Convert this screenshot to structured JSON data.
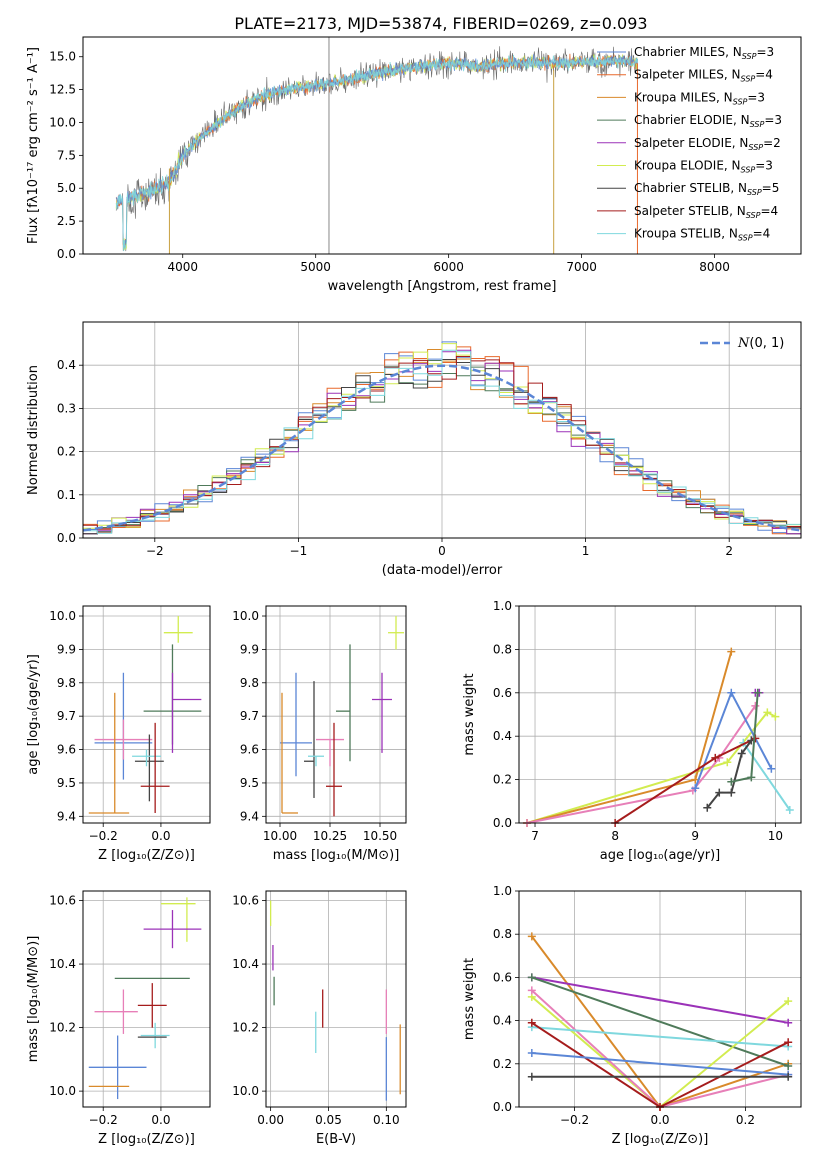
{
  "title": "PLATE=2173, MJD=53874, FIBERID=0269, z=0.093",
  "colors": {
    "Chabrier MILES": "#5b86d6",
    "Salpeter MILES": "#e8692c",
    "Kroupa MILES": "#d98a2b",
    "Chabrier ELODIE": "#4f7a5a",
    "Salpeter ELODIE": "#9b32b8",
    "Kroupa ELODIE": "#d2ec50",
    "Chabrier STELIB": "#444444",
    "Salpeter STELIB": "#a51c1c",
    "Kroupa STELIB": "#7fd8de",
    "Pink": "#e77fb8",
    "Normal": "#5b86d6"
  },
  "chart_data": [
    {
      "id": "spectrum",
      "type": "line",
      "xlabel": "wavelength [Angstrom, rest frame]",
      "ylabel": "Flux [fλ10⁻¹⁷ erg cm⁻² s⁻¹ A⁻¹]",
      "xlim": [
        3250,
        8650
      ],
      "ylim": [
        0,
        16.5
      ],
      "xticks": [
        4000,
        5000,
        6000,
        7000,
        8000
      ],
      "yticks": [
        0.0,
        2.5,
        5.0,
        7.5,
        10.0,
        12.5,
        15.0
      ],
      "legend": [
        {
          "label": "Chabrier MILES, N_SSP=3",
          "text": "Chabrier MILES, N",
          "sub": "SSP",
          "tail": "=3",
          "color": "Chabrier MILES"
        },
        {
          "label": "Salpeter MILES, N_SSP=4",
          "text": "Salpeter MILES, N",
          "sub": "SSP",
          "tail": "=4",
          "color": "Salpeter MILES"
        },
        {
          "label": "Kroupa MILES, N_SSP=3",
          "text": "Kroupa MILES, N",
          "sub": "SSP",
          "tail": "=3",
          "color": "Kroupa MILES"
        },
        {
          "label": "Chabrier ELODIE, N_SSP=3",
          "text": "Chabrier ELODIE, N",
          "sub": "SSP",
          "tail": "=3",
          "color": "Chabrier ELODIE"
        },
        {
          "label": "Salpeter ELODIE, N_SSP=2",
          "text": "Salpeter ELODIE, N",
          "sub": "SSP",
          "tail": "=2",
          "color": "Salpeter ELODIE"
        },
        {
          "label": "Kroupa ELODIE, N_SSP=3",
          "text": "Kroupa ELODIE, N",
          "sub": "SSP",
          "tail": "=3",
          "color": "Kroupa ELODIE"
        },
        {
          "label": "Chabrier STELIB, N_SSP=5",
          "text": "Chabrier STELIB, N",
          "sub": "SSP",
          "tail": "=5",
          "color": "Chabrier STELIB"
        },
        {
          "label": "Salpeter STELIB, N_SSP=4",
          "text": "Salpeter STELIB, N",
          "sub": "SSP",
          "tail": "=4",
          "color": "Salpeter STELIB"
        },
        {
          "label": "Kroupa STELIB, N_SSP=4",
          "text": "Kroupa STELIB, N",
          "sub": "SSP",
          "tail": "=4",
          "color": "Kroupa STELIB"
        }
      ],
      "continuum_x": [
        3500,
        3700,
        3900,
        4000,
        4200,
        4400,
        4600,
        4800,
        5000,
        5200,
        5400,
        5600,
        5800,
        6000,
        6200,
        6400,
        6600,
        6800,
        7000,
        7200,
        7400
      ],
      "continuum_y": [
        4.0,
        4.5,
        5.5,
        7.5,
        9.5,
        11.0,
        12.0,
        12.6,
        12.8,
        13.2,
        13.6,
        14.0,
        14.3,
        14.5,
        14.3,
        14.5,
        14.6,
        14.5,
        14.6,
        14.7,
        14.6
      ],
      "spikes": [
        {
          "x": 5100,
          "y1": 0,
          "y2": 16.5
        },
        {
          "x": 3900,
          "y1": 0,
          "y2": 6.5
        },
        {
          "x": 6790,
          "y1": 0,
          "y2": 14.0
        },
        {
          "x": 7420,
          "y1": 0,
          "y2": 14.5
        }
      ]
    },
    {
      "id": "residuals",
      "type": "histogram",
      "xlabel": "(data-model)/error",
      "ylabel": "Normed distribution",
      "xlim": [
        -2.5,
        2.5
      ],
      "ylim": [
        0,
        0.5
      ],
      "xticks": [
        -2,
        -1,
        0,
        1,
        2
      ],
      "xticklabels": [
        "−2",
        "−1",
        "0",
        "1",
        "2"
      ],
      "yticks": [
        0.0,
        0.1,
        0.2,
        0.3,
        0.4
      ],
      "bin_width": 0.1,
      "legend": {
        "label": "N(0,1)",
        "text": "(0, 1)"
      },
      "normal_curve": {
        "mean": 0,
        "sigma": 1
      }
    },
    {
      "id": "age_vs_Z",
      "type": "errorbar",
      "xlabel": "Z [log₁₀(Z/Z⊙)]",
      "ylabel": "age  [log₁₀(age/yr)]",
      "xlim": [
        -0.27,
        0.17
      ],
      "ylim": [
        9.38,
        10.03
      ],
      "xticks": [
        -0.2,
        0.0
      ],
      "xticklabels": [
        "−0.2",
        "0.0"
      ],
      "yticks": [
        9.4,
        9.5,
        9.6,
        9.7,
        9.8,
        9.9,
        10.0
      ],
      "points": [
        {
          "color": "Kroupa ELODIE",
          "x": 0.06,
          "xerr": [
            0.05,
            0.05
          ],
          "y": 9.95,
          "yerr": [
            0.03,
            0.05
          ]
        },
        {
          "color": "Chabrier ELODIE",
          "x": 0.04,
          "xerr": [
            0.1,
            0.1
          ],
          "y": 9.715,
          "yerr": [
            0.1,
            0.2
          ]
        },
        {
          "color": "Salpeter ELODIE",
          "x": 0.04,
          "xerr": [
            0.0,
            0.1
          ],
          "y": 9.75,
          "yerr": [
            0.16,
            0.08
          ]
        },
        {
          "color": "Chabrier MILES",
          "x": -0.13,
          "xerr": [
            0.1,
            0.1
          ],
          "y": 9.62,
          "yerr": [
            0.11,
            0.21
          ]
        },
        {
          "color": "Pink",
          "x": -0.13,
          "xerr": [
            0.1,
            0.1
          ],
          "y": 9.63,
          "yerr": [
            0.06,
            0.06
          ]
        },
        {
          "color": "Chabrier STELIB",
          "x": -0.04,
          "xerr": [
            0.05,
            0.05
          ],
          "y": 9.565,
          "yerr": [
            0.12,
            0.08
          ]
        },
        {
          "color": "Kroupa STELIB",
          "x": -0.05,
          "xerr": [
            0.05,
            0.05
          ],
          "y": 9.58,
          "yerr": [
            0.03,
            0.02
          ]
        },
        {
          "color": "Salpeter STELIB",
          "x": -0.02,
          "xerr": [
            0.05,
            0.05
          ],
          "y": 9.49,
          "yerr": [
            0.08,
            0.19
          ]
        },
        {
          "color": "Kroupa MILES",
          "x": -0.16,
          "xerr": [
            0.09,
            0.05
          ],
          "y": 9.41,
          "yerr": [
            0.0,
            0.36
          ]
        }
      ]
    },
    {
      "id": "age_vs_mass",
      "type": "errorbar",
      "xlabel": "mass [log₁₀(M/M⊙)]",
      "ylabel": "",
      "xlim": [
        9.93,
        10.63
      ],
      "ylim": [
        9.38,
        10.03
      ],
      "xticks": [
        10.0,
        10.25,
        10.5
      ],
      "xticklabels": [
        "10.00",
        "10.25",
        "10.50"
      ],
      "yticks": [
        9.4,
        9.5,
        9.6,
        9.7,
        9.8,
        9.9,
        10.0
      ],
      "points": [
        {
          "color": "Kroupa ELODIE",
          "x": 10.58,
          "xerr": [
            0.04,
            0.04
          ],
          "y": 9.95,
          "yerr": [
            0.05,
            0.05
          ]
        },
        {
          "color": "Chabrier ELODIE",
          "x": 10.35,
          "xerr": [
            0.07,
            0.0
          ],
          "y": 9.715,
          "yerr": [
            0.15,
            0.2
          ]
        },
        {
          "color": "Salpeter ELODIE",
          "x": 10.51,
          "xerr": [
            0.05,
            0.05
          ],
          "y": 9.75,
          "yerr": [
            0.16,
            0.08
          ]
        },
        {
          "color": "Chabrier MILES",
          "x": 10.08,
          "xerr": [
            0.08,
            0.08
          ],
          "y": 9.62,
          "yerr": [
            0.1,
            0.21
          ]
        },
        {
          "color": "Pink",
          "x": 10.25,
          "xerr": [
            0.07,
            0.07
          ],
          "y": 9.63,
          "yerr": [
            0.08,
            0.0
          ]
        },
        {
          "color": "Chabrier STELIB",
          "x": 10.17,
          "xerr": [
            0.05,
            0.0
          ],
          "y": 9.565,
          "yerr": [
            0.11,
            0.24
          ]
        },
        {
          "color": "Kroupa STELIB",
          "x": 10.18,
          "xerr": [
            0.04,
            0.04
          ],
          "y": 9.58,
          "yerr": [
            0.03,
            0.0
          ]
        },
        {
          "color": "Salpeter STELIB",
          "x": 10.27,
          "xerr": [
            0.04,
            0.04
          ],
          "y": 9.49,
          "yerr": [
            0.09,
            0.19
          ]
        },
        {
          "color": "Kroupa MILES",
          "x": 10.01,
          "xerr": [
            0.0,
            0.08
          ],
          "y": 9.41,
          "yerr": [
            0.0,
            0.36
          ]
        }
      ]
    },
    {
      "id": "weight_vs_age",
      "type": "line",
      "xlabel": "age  [log₁₀(age/yr)]",
      "ylabel": "mass weight",
      "xlim": [
        6.8,
        10.32
      ],
      "ylim": [
        0,
        1.0
      ],
      "xticks": [
        7,
        8,
        9,
        10
      ],
      "yticks": [
        0.0,
        0.2,
        0.4,
        0.6,
        0.8,
        1.0
      ],
      "series": [
        {
          "color": "Kroupa ELODIE",
          "x": [
            6.9,
            9.4,
            9.9,
            10.0
          ],
          "y": [
            0.0,
            0.28,
            0.51,
            0.49
          ]
        },
        {
          "color": "Kroupa MILES",
          "x": [
            6.9,
            9.0,
            9.45
          ],
          "y": [
            0.0,
            0.2,
            0.79
          ]
        },
        {
          "color": "Pink",
          "x": [
            6.9,
            8.97,
            9.3,
            9.75
          ],
          "y": [
            0.0,
            0.15,
            0.3,
            0.54
          ]
        },
        {
          "color": "Chabrier MILES",
          "x": [
            9.0,
            9.45,
            9.95
          ],
          "y": [
            0.16,
            0.6,
            0.25
          ]
        },
        {
          "color": "Kroupa STELIB",
          "x": [
            9.6,
            10.18
          ],
          "y": [
            0.37,
            0.06
          ]
        },
        {
          "color": "Salpeter STELIB",
          "x": [
            8.0,
            9.25,
            9.75
          ],
          "y": [
            0.0,
            0.3,
            0.39
          ]
        },
        {
          "color": "Salpeter ELODIE",
          "x": [
            9.75,
            9.8
          ],
          "y": [
            0.6,
            0.6
          ]
        },
        {
          "color": "Chabrier STELIB",
          "x": [
            9.15,
            9.3,
            9.45,
            9.58,
            9.7
          ],
          "y": [
            0.07,
            0.14,
            0.14,
            0.32,
            0.38
          ]
        },
        {
          "color": "Chabrier ELODIE",
          "x": [
            9.45,
            9.7,
            9.78
          ],
          "y": [
            0.19,
            0.21,
            0.6
          ]
        }
      ]
    },
    {
      "id": "mass_vs_Z",
      "type": "errorbar",
      "xlabel": "Z [log₁₀(Z/Z⊙)]",
      "ylabel": "mass [log₁₀(M/M⊙)]",
      "xlim": [
        -0.27,
        0.17
      ],
      "ylim": [
        9.95,
        10.63
      ],
      "xticks": [
        -0.2,
        0.0
      ],
      "xticklabels": [
        "−0.2",
        "0.0"
      ],
      "yticks": [
        10.0,
        10.2,
        10.4,
        10.6
      ],
      "points": [
        {
          "color": "Kroupa ELODIE",
          "x": 0.09,
          "xerr": [
            0.09,
            0.03
          ],
          "y": 10.59,
          "yerr": [
            0.12,
            0.02
          ]
        },
        {
          "color": "Salpeter ELODIE",
          "x": 0.04,
          "xerr": [
            0.1,
            0.1
          ],
          "y": 10.51,
          "yerr": [
            0.06,
            0.06
          ]
        },
        {
          "color": "Chabrier ELODIE",
          "x": -0.03,
          "xerr": [
            0.13,
            0.13
          ],
          "y": 10.355,
          "yerr": [
            0.0,
            0.0
          ]
        },
        {
          "color": "Salpeter STELIB",
          "x": -0.03,
          "xerr": [
            0.05,
            0.05
          ],
          "y": 10.27,
          "yerr": [
            0.07,
            0.07
          ]
        },
        {
          "color": "Pink",
          "x": -0.13,
          "xerr": [
            0.1,
            0.05
          ],
          "y": 10.25,
          "yerr": [
            0.07,
            0.07
          ]
        },
        {
          "color": "Chabrier MILES",
          "x": -0.15,
          "xerr": [
            0.1,
            0.1
          ],
          "y": 10.075,
          "yerr": [
            0.1,
            0.1
          ]
        },
        {
          "color": "Kroupa STELIB",
          "x": -0.02,
          "xerr": [
            0.05,
            0.05
          ],
          "y": 10.175,
          "yerr": [
            0.04,
            0.04
          ]
        },
        {
          "color": "Chabrier STELIB",
          "x": -0.03,
          "xerr": [
            0.05,
            0.05
          ],
          "y": 10.17,
          "yerr": [
            0.0,
            0.0
          ]
        },
        {
          "color": "Kroupa MILES",
          "x": -0.18,
          "xerr": [
            0.07,
            0.07
          ],
          "y": 10.015,
          "yerr": [
            0.0,
            0.0
          ]
        }
      ]
    },
    {
      "id": "mass_vs_ebv",
      "type": "errorbar",
      "xlabel": "E(B-V)",
      "ylabel": "",
      "xlim": [
        -0.004,
        0.117
      ],
      "ylim": [
        9.95,
        10.63
      ],
      "xticks": [
        0.0,
        0.05,
        0.1
      ],
      "xticklabels": [
        "0.00",
        "0.05",
        "0.10"
      ],
      "yticks": [
        10.0,
        10.2,
        10.4,
        10.6
      ],
      "points": [
        {
          "color": "Kroupa ELODIE",
          "x": 0.0,
          "xerr": [
            0,
            0
          ],
          "y": 10.56,
          "yerr": [
            0.04,
            0.04
          ]
        },
        {
          "color": "Salpeter ELODIE",
          "x": 0.002,
          "xerr": [
            0,
            0
          ],
          "y": 10.42,
          "yerr": [
            0.04,
            0.04
          ]
        },
        {
          "color": "Chabrier ELODIE",
          "x": 0.003,
          "xerr": [
            0,
            0
          ],
          "y": 10.36,
          "yerr": [
            0.09,
            0.0
          ]
        },
        {
          "color": "Kroupa STELIB",
          "x": 0.039,
          "xerr": [
            0,
            0
          ],
          "y": 10.19,
          "yerr": [
            0.07,
            0.06
          ]
        },
        {
          "color": "Salpeter STELIB",
          "x": 0.045,
          "xerr": [
            0,
            0
          ],
          "y": 10.26,
          "yerr": [
            0.06,
            0.06
          ]
        },
        {
          "color": "Pink",
          "x": 0.1,
          "xerr": [
            0,
            0
          ],
          "y": 10.25,
          "yerr": [
            0.07,
            0.07
          ]
        },
        {
          "color": "Chabrier MILES",
          "x": 0.1,
          "xerr": [
            0,
            0
          ],
          "y": 10.07,
          "yerr": [
            0.1,
            0.1
          ]
        },
        {
          "color": "Kroupa MILES",
          "x": 0.112,
          "xerr": [
            0,
            0
          ],
          "y": 10.1,
          "yerr": [
            0.11,
            0.11
          ]
        }
      ]
    },
    {
      "id": "weight_vs_Z",
      "type": "line",
      "xlabel": "Z [log₁₀(Z/Z⊙)]",
      "ylabel": "mass weight",
      "xlim": [
        -0.33,
        0.33
      ],
      "ylim": [
        0,
        1.0
      ],
      "xticks": [
        -0.2,
        0.0,
        0.2
      ],
      "xticklabels": [
        "−0.2",
        "0.0",
        "0.2"
      ],
      "yticks": [
        0.0,
        0.2,
        0.4,
        0.6,
        0.8,
        1.0
      ],
      "series": [
        {
          "color": "Kroupa MILES",
          "x": [
            -0.3,
            0.0,
            0.3
          ],
          "y": [
            0.79,
            0.0,
            0.2
          ]
        },
        {
          "color": "Salpeter ELODIE",
          "x": [
            -0.3,
            0.3
          ],
          "y": [
            0.6,
            0.39
          ]
        },
        {
          "color": "Chabrier ELODIE",
          "x": [
            -0.3,
            0.3
          ],
          "y": [
            0.6,
            0.19
          ]
        },
        {
          "color": "Kroupa ELODIE",
          "x": [
            -0.3,
            0.0,
            0.3
          ],
          "y": [
            0.51,
            0.0,
            0.49
          ]
        },
        {
          "color": "Pink",
          "x": [
            -0.3,
            0.0,
            0.3
          ],
          "y": [
            0.54,
            0.0,
            0.15
          ]
        },
        {
          "color": "Kroupa STELIB",
          "x": [
            -0.3,
            0.3
          ],
          "y": [
            0.37,
            0.28
          ]
        },
        {
          "color": "Salpeter STELIB",
          "x": [
            -0.3,
            0.0,
            0.3
          ],
          "y": [
            0.39,
            0.0,
            0.3
          ]
        },
        {
          "color": "Chabrier MILES",
          "x": [
            -0.3,
            0.3
          ],
          "y": [
            0.25,
            0.15
          ]
        },
        {
          "color": "Chabrier STELIB",
          "x": [
            -0.3,
            0.3
          ],
          "y": [
            0.14,
            0.14
          ]
        }
      ]
    }
  ]
}
